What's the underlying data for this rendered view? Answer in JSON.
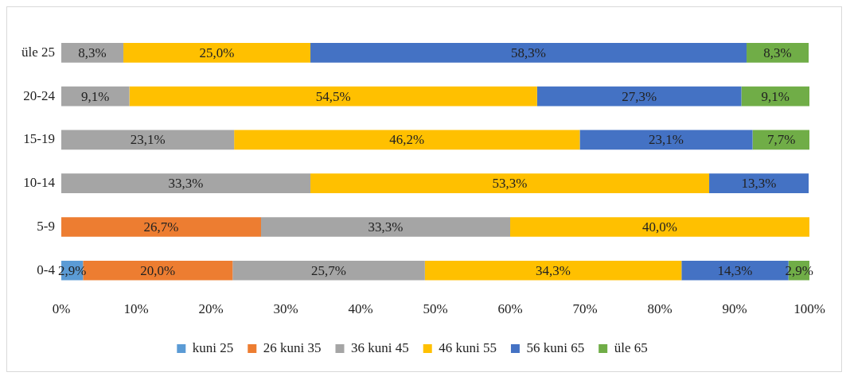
{
  "chart_data": {
    "type": "bar",
    "orientation": "horizontal",
    "stacked": true,
    "categories": [
      "üle 25",
      "20-24",
      "15-19",
      "10-14",
      "5-9",
      "0-4"
    ],
    "series": [
      {
        "name": "kuni 25",
        "color": "#5b9bd5",
        "values": [
          null,
          null,
          null,
          null,
          null,
          2.9
        ],
        "value_labels": [
          null,
          null,
          null,
          null,
          null,
          "2,9%"
        ]
      },
      {
        "name": "26 kuni 35",
        "color": "#ed7d31",
        "values": [
          null,
          null,
          null,
          null,
          26.7,
          20.0
        ],
        "value_labels": [
          null,
          null,
          null,
          null,
          "26,7%",
          "20,0%"
        ]
      },
      {
        "name": "36 kuni 45",
        "color": "#a5a5a5",
        "values": [
          8.3,
          9.1,
          23.1,
          33.3,
          33.3,
          25.7
        ],
        "value_labels": [
          "8,3%",
          "9,1%",
          "23,1%",
          "33,3%",
          "33,3%",
          "25,7%"
        ]
      },
      {
        "name": "46 kuni 55",
        "color": "#ffc000",
        "values": [
          25.0,
          54.5,
          46.2,
          53.3,
          40.0,
          34.3
        ],
        "value_labels": [
          "25,0%",
          "54,5%",
          "46,2%",
          "53,3%",
          "40,0%",
          "34,3%"
        ]
      },
      {
        "name": "56 kuni 65",
        "color": "#4472c4",
        "values": [
          58.3,
          27.3,
          23.1,
          13.3,
          null,
          14.3
        ],
        "value_labels": [
          "58,3%",
          "27,3%",
          "23,1%",
          "13,3%",
          null,
          "14,3%"
        ]
      },
      {
        "name": "üle 65",
        "color": "#70ad47",
        "values": [
          8.3,
          9.1,
          7.7,
          null,
          null,
          2.9
        ],
        "value_labels": [
          "8,3%",
          "9,1%",
          "7,7%",
          null,
          null,
          "2,9%"
        ]
      }
    ],
    "xlim": [
      0,
      100
    ],
    "xticks": [
      {
        "value": 0,
        "label": "0%"
      },
      {
        "value": 10,
        "label": "10%"
      },
      {
        "value": 20,
        "label": "20%"
      },
      {
        "value": 30,
        "label": "30%"
      },
      {
        "value": 40,
        "label": "40%"
      },
      {
        "value": 50,
        "label": "50%"
      },
      {
        "value": 60,
        "label": "60%"
      },
      {
        "value": 70,
        "label": "70%"
      },
      {
        "value": 80,
        "label": "80%"
      },
      {
        "value": 90,
        "label": "90%"
      },
      {
        "value": 100,
        "label": "100%"
      }
    ],
    "grid": false,
    "legend": "bottom"
  }
}
